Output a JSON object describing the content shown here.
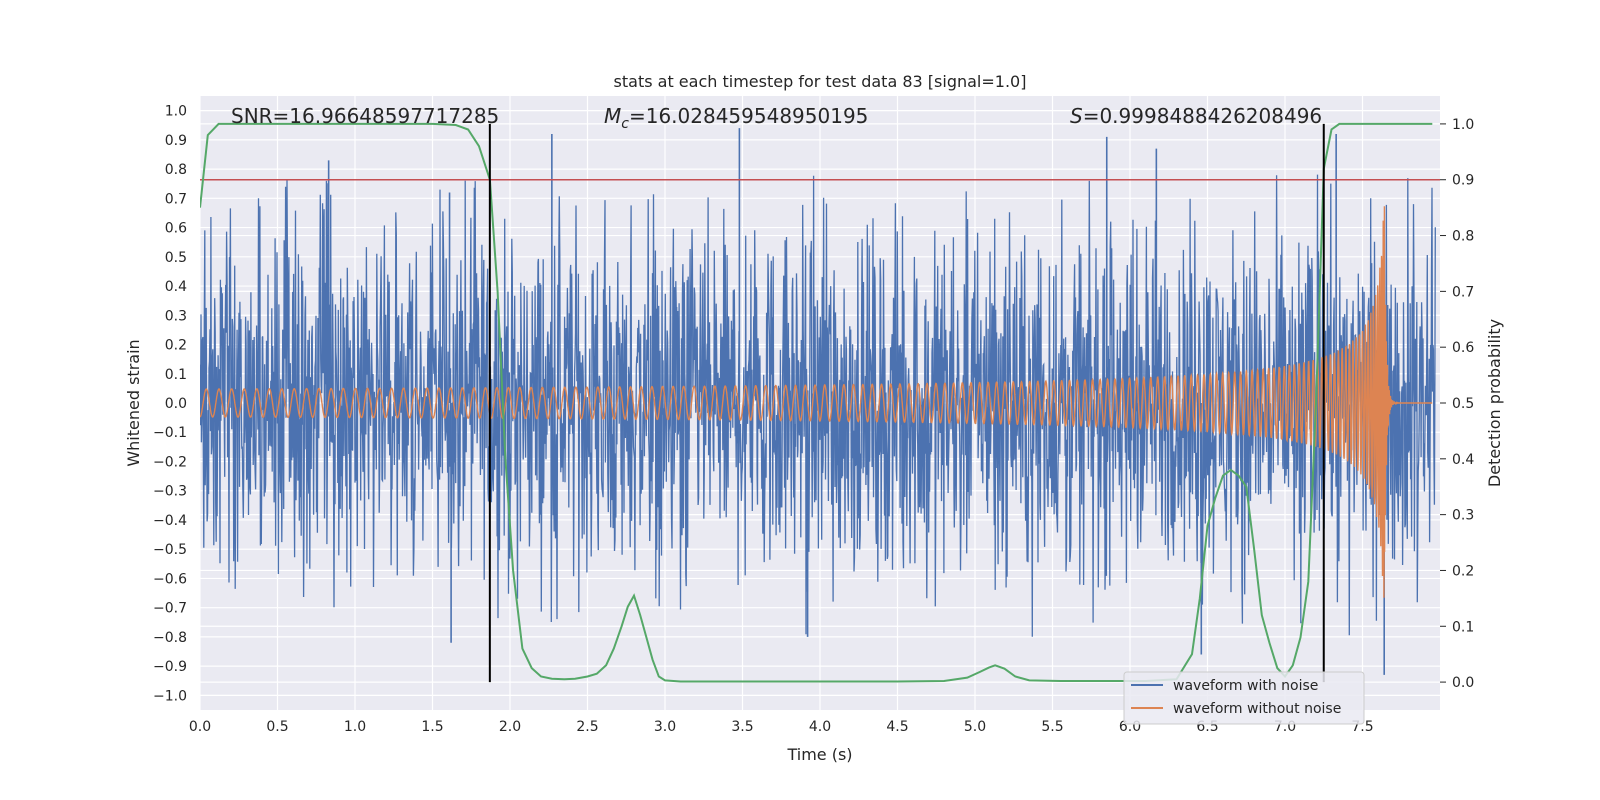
{
  "chart_data": {
    "type": "line",
    "title": "stats at each timestep for test data 83 [signal=1.0]",
    "xlabel": "Time (s)",
    "ylabel": "Whitened strain",
    "y2label": "Detection probability",
    "xlim": [
      0.0,
      8.0
    ],
    "ylim": [
      -1.05,
      1.05
    ],
    "y2lim": [
      -0.05,
      1.05
    ],
    "x_ticks": [
      0.0,
      0.5,
      1.0,
      1.5,
      2.0,
      2.5,
      3.0,
      3.5,
      4.0,
      4.5,
      5.0,
      5.5,
      6.0,
      6.5,
      7.0,
      7.5
    ],
    "x_tick_labels": [
      "0.0",
      "0.5",
      "1.0",
      "1.5",
      "2.0",
      "2.5",
      "3.0",
      "3.5",
      "4.0",
      "4.5",
      "5.0",
      "5.5",
      "6.0",
      "6.5",
      "7.0",
      "7.5"
    ],
    "y_ticks": [
      -1.0,
      -0.9,
      -0.8,
      -0.7,
      -0.6,
      -0.5,
      -0.4,
      -0.3,
      -0.2,
      -0.1,
      0.0,
      0.1,
      0.2,
      0.3,
      0.4,
      0.5,
      0.6,
      0.7,
      0.8,
      0.9,
      1.0
    ],
    "y_tick_labels": [
      "−1.0",
      "−0.9",
      "−0.8",
      "−0.7",
      "−0.6",
      "−0.5",
      "−0.4",
      "−0.3",
      "−0.2",
      "−0.1",
      "0.0",
      "0.1",
      "0.2",
      "0.3",
      "0.4",
      "0.5",
      "0.6",
      "0.7",
      "0.8",
      "0.9",
      "1.0"
    ],
    "y2_ticks": [
      0.0,
      0.1,
      0.2,
      0.3,
      0.4,
      0.5,
      0.6,
      0.7,
      0.8,
      0.9,
      1.0
    ],
    "y2_tick_labels": [
      "0.0",
      "0.1",
      "0.2",
      "0.3",
      "0.4",
      "0.5",
      "0.6",
      "0.7",
      "0.8",
      "0.9",
      "1.0"
    ],
    "grid": true,
    "legend_position": "bottom-right",
    "series": [
      {
        "name": "waveform with noise",
        "color": "#4c72b0",
        "axis": "left",
        "note": "dense noisy whitened strain, amplitude envelope roughly ±0.3 with spikes up to about 0.94 and down to about -0.93",
        "peaks": [
          {
            "x": 0.83,
            "y": 0.83
          },
          {
            "x": 1.61,
            "y": 0.72
          },
          {
            "x": 2.27,
            "y": 0.92
          },
          {
            "x": 3.48,
            "y": 0.94
          },
          {
            "x": 5.85,
            "y": 0.91
          },
          {
            "x": 6.17,
            "y": 0.87
          },
          {
            "x": 7.33,
            "y": 0.92
          },
          {
            "x": 1.62,
            "y": -0.82
          },
          {
            "x": 3.92,
            "y": -0.8
          },
          {
            "x": 7.64,
            "y": -0.93
          },
          {
            "x": 6.46,
            "y": -0.86
          }
        ]
      },
      {
        "name": "waveform without noise",
        "color": "#dd8452",
        "axis": "left",
        "note": "chirp signal: amplitude grows from ~0.02 to ~0.75 peaking near t=7.64 s, then ringdown to 0",
        "merger_time": 7.64,
        "amplitude_start": 0.02,
        "amplitude_peak": 0.75
      },
      {
        "name": "detection probability",
        "color": "#55a868",
        "axis": "right",
        "x": [
          0.0,
          0.05,
          0.12,
          0.3,
          0.8,
          1.2,
          1.5,
          1.65,
          1.73,
          1.8,
          1.87,
          1.92,
          1.97,
          2.02,
          2.08,
          2.14,
          2.2,
          2.27,
          2.35,
          2.42,
          2.5,
          2.56,
          2.62,
          2.67,
          2.72,
          2.76,
          2.8,
          2.84,
          2.88,
          2.92,
          2.96,
          3.0,
          3.1,
          3.5,
          4.0,
          4.5,
          4.8,
          4.95,
          5.03,
          5.09,
          5.13,
          5.19,
          5.26,
          5.35,
          5.55,
          5.8,
          6.1,
          6.3,
          6.4,
          6.45,
          6.5,
          6.55,
          6.6,
          6.65,
          6.7,
          6.75,
          6.8,
          6.85,
          6.9,
          6.95,
          7.0,
          7.05,
          7.1,
          7.15,
          7.2,
          7.25,
          7.3,
          7.35,
          7.5,
          7.95
        ],
        "values": [
          0.85,
          0.98,
          1.0,
          1.0,
          1.0,
          1.0,
          1.0,
          0.998,
          0.99,
          0.96,
          0.9,
          0.7,
          0.4,
          0.2,
          0.06,
          0.025,
          0.01,
          0.006,
          0.005,
          0.006,
          0.01,
          0.015,
          0.03,
          0.06,
          0.1,
          0.135,
          0.155,
          0.12,
          0.08,
          0.04,
          0.01,
          0.003,
          0.001,
          0.001,
          0.001,
          0.001,
          0.002,
          0.008,
          0.018,
          0.026,
          0.03,
          0.024,
          0.01,
          0.003,
          0.002,
          0.002,
          0.002,
          0.005,
          0.05,
          0.15,
          0.28,
          0.33,
          0.37,
          0.38,
          0.37,
          0.35,
          0.24,
          0.12,
          0.07,
          0.025,
          0.01,
          0.03,
          0.08,
          0.18,
          0.5,
          0.92,
          0.99,
          1.0,
          1.0,
          1.0
        ]
      }
    ],
    "threshold_line": {
      "axis": "right",
      "value": 0.9,
      "color": "#c44e52"
    },
    "vertical_lines": [
      {
        "x": 1.87,
        "color": "#000000"
      },
      {
        "x": 7.25,
        "color": "#000000"
      }
    ],
    "annotations": {
      "snr": "SNR=16.96648597717285",
      "mc_symbol": "M",
      "mc_subscript": "c",
      "mc_value": "=16.028459548950195",
      "s_symbol": "S",
      "s_value": "=0.9998488426208496"
    },
    "legend": [
      {
        "label": "waveform with noise",
        "color": "#4c72b0"
      },
      {
        "label": "waveform without noise",
        "color": "#dd8452"
      }
    ]
  }
}
